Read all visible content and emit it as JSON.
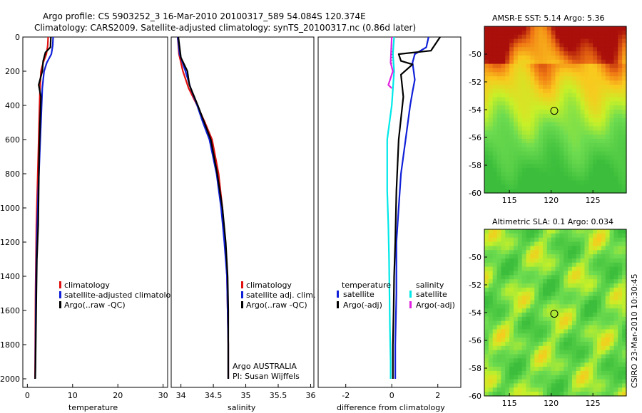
{
  "title_line1": "Argo profile: CS 5903252_3 16-Mar-2010 20100317_589 54.084S 120.374E",
  "title_line2": "Climatology: CARS2009. Satellite-adjusted climatology: synTS_20100317.nc (0.86d later)",
  "stamp": "CSIRO 23-Mar-2010 10:30:45",
  "colors": {
    "red": "#e01010",
    "blue": "#1020d8",
    "black": "#000000",
    "cyan": "#00e8e8",
    "magenta": "#e020e0"
  },
  "chart_data": [
    {
      "type": "line",
      "name": "temperature-panel",
      "xlabel": "temperature",
      "ylabel": "",
      "xlim": [
        -1,
        31
      ],
      "ylim": [
        2050,
        0
      ],
      "xticks": [
        0,
        10,
        20,
        30
      ],
      "yticks": [
        0,
        200,
        400,
        600,
        800,
        1000,
        1200,
        1400,
        1600,
        1800,
        2000
      ],
      "legend": [
        "climatology",
        "satellite-adjusted climatology",
        "Argo(..raw -QC)"
      ],
      "series": [
        {
          "name": "climatology",
          "color": "red",
          "x": [
            4.6,
            4.5,
            4.2,
            3.5,
            3.0,
            2.8,
            2.6,
            2.4,
            2.2,
            2.0,
            1.9,
            1.8,
            1.75,
            1.7
          ],
          "y": [
            0,
            50,
            100,
            150,
            200,
            300,
            500,
            700,
            900,
            1100,
            1300,
            1500,
            1800,
            2000
          ]
        },
        {
          "name": "satellite-adjusted climatology",
          "color": "blue",
          "x": [
            5.7,
            5.6,
            5.3,
            4.3,
            3.7,
            3.3,
            3.0,
            2.7,
            2.4,
            2.2,
            2.0,
            1.9,
            1.8,
            1.75
          ],
          "y": [
            0,
            50,
            100,
            150,
            200,
            300,
            500,
            700,
            900,
            1100,
            1300,
            1500,
            1800,
            2000
          ]
        },
        {
          "name": "Argo(..raw -QC)",
          "color": "black",
          "x": [
            5.2,
            5.1,
            4.0,
            3.5,
            3.3,
            2.5,
            3.0,
            2.8,
            2.6,
            2.5,
            2.4,
            2.1,
            2.0,
            1.9,
            1.8,
            1.75
          ],
          "y": [
            0,
            60,
            90,
            140,
            200,
            280,
            350,
            500,
            700,
            900,
            1100,
            1300,
            1500,
            1700,
            1900,
            2000
          ]
        }
      ]
    },
    {
      "type": "line",
      "name": "salinity-panel",
      "xlabel": "salinity",
      "ylabel": "",
      "xlim": [
        33.85,
        36.05
      ],
      "ylim": [
        2050,
        0
      ],
      "xticks": [
        34,
        34.5,
        35,
        35.5,
        36
      ],
      "legend": [
        "climatology",
        "satellite adj. clim.",
        "Argo(..raw -QC)"
      ],
      "note_line1": "Argo AUSTRALIA",
      "note_line2": "PI: Susan Wijffels",
      "series": [
        {
          "name": "climatology",
          "color": "red",
          "x": [
            33.95,
            33.97,
            34.03,
            34.12,
            34.25,
            34.37,
            34.48,
            34.58,
            34.64,
            34.68,
            34.71,
            34.72,
            34.73,
            34.73
          ],
          "y": [
            0,
            100,
            200,
            300,
            400,
            500,
            600,
            800,
            1000,
            1200,
            1400,
            1600,
            1800,
            2000
          ]
        },
        {
          "name": "satellite adj. clim.",
          "color": "blue",
          "x": [
            33.95,
            33.98,
            34.07,
            34.15,
            34.25,
            34.34,
            34.44,
            34.55,
            34.62,
            34.67,
            34.71,
            34.72,
            34.73,
            34.73
          ],
          "y": [
            0,
            100,
            200,
            300,
            400,
            500,
            600,
            800,
            1000,
            1200,
            1400,
            1600,
            1800,
            2000
          ]
        },
        {
          "name": "Argo(..raw -QC)",
          "color": "black",
          "x": [
            33.96,
            34.0,
            34.1,
            34.13,
            34.26,
            34.36,
            34.46,
            34.56,
            34.64,
            34.69,
            34.72,
            34.73,
            34.73,
            34.73
          ],
          "y": [
            0,
            120,
            200,
            280,
            400,
            500,
            600,
            800,
            1000,
            1200,
            1400,
            1600,
            1800,
            2000
          ]
        }
      ]
    },
    {
      "type": "line",
      "name": "difference-panel",
      "xlabel": "difference from climatology",
      "ylabel": "",
      "xlim": [
        -3.2,
        3.0
      ],
      "ylim": [
        2050,
        0
      ],
      "xticks": [
        -2,
        0,
        2
      ],
      "legend_temperature_title": "temperature",
      "legend_salinity_title": "salinity",
      "legend_left": [
        "satellite",
        "Argo(-adj)"
      ],
      "legend_right": [
        "satellite",
        "Argo(-adj)"
      ],
      "series": [
        {
          "name": "temperature satellite",
          "color": "blue",
          "x": [
            1.6,
            1.5,
            1.0,
            0.9,
            1.0,
            0.9,
            0.8,
            0.6,
            0.4,
            0.3,
            0.2,
            0.2,
            0.15,
            0.15
          ],
          "y": [
            0,
            60,
            100,
            150,
            250,
            320,
            400,
            600,
            800,
            1000,
            1200,
            1500,
            1800,
            2000
          ]
        },
        {
          "name": "temperature Argo(-adj)",
          "color": "black",
          "x": [
            2.1,
            1.7,
            0.3,
            0.4,
            0.9,
            0.4,
            0.5,
            0.3,
            0.2,
            0.15,
            0.1,
            0.08,
            0.05,
            0.05
          ],
          "y": [
            0,
            80,
            100,
            140,
            160,
            220,
            350,
            600,
            900,
            1200,
            1400,
            1600,
            1800,
            2000
          ]
        },
        {
          "name": "salinity satellite",
          "color": "cyan",
          "x": [
            0.1,
            0.05,
            0.1,
            0.0,
            -0.1,
            -0.2,
            -0.2,
            -0.2,
            -0.15,
            -0.12,
            -0.1,
            -0.08,
            -0.05,
            -0.05
          ],
          "y": [
            0,
            100,
            200,
            400,
            500,
            600,
            700,
            900,
            1100,
            1300,
            1500,
            1700,
            1900,
            2000
          ]
        },
        {
          "name": "salinity Argo(-adj)",
          "color": "magenta",
          "x": [
            0.0,
            -0.05,
            0.05,
            -0.15,
            0.0
          ],
          "y": [
            0,
            150,
            200,
            280,
            300
          ]
        }
      ]
    },
    {
      "type": "heatmap",
      "name": "sst-map",
      "title": "AMSR-E SST: 5.14 Argo: 5.36",
      "xlim": [
        112,
        129
      ],
      "ylim": [
        -60,
        -48
      ],
      "xticks": [
        115,
        120,
        125
      ],
      "yticks": [
        -50,
        -52,
        -54,
        -56,
        -58,
        -60
      ],
      "marker": {
        "lon": 120.374,
        "lat": -54.084
      }
    },
    {
      "type": "heatmap",
      "name": "sla-map",
      "title": "Altimetric SLA: 0.1 Argo: 0.034",
      "xlim": [
        112,
        129
      ],
      "ylim": [
        -60,
        -48
      ],
      "xticks": [
        115,
        120,
        125
      ],
      "yticks": [
        -50,
        -52,
        -54,
        -56,
        -58,
        -60
      ],
      "marker": {
        "lon": 120.374,
        "lat": -54.084
      }
    }
  ]
}
